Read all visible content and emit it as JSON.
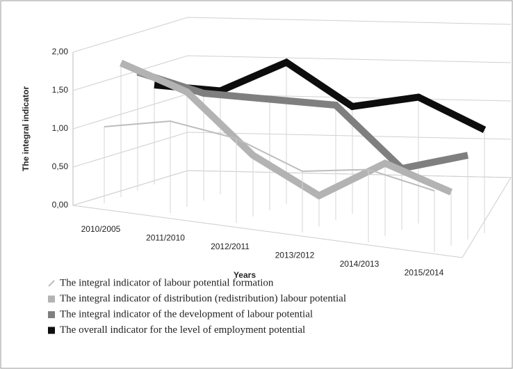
{
  "chart_data": {
    "type": "line3d",
    "y_axis_label": "The integral indicator",
    "x_axis_label": "Years",
    "categories": [
      "2010/2005",
      "2011/2010",
      "2012/2011",
      "2013/2012",
      "2014/2013",
      "2015/2014"
    ],
    "series": [
      {
        "name": "The integral indicator of labour potential formation",
        "color": "#bdbdbd",
        "values": [
          1.0,
          1.2,
          1.1,
          0.8,
          0.95,
          0.8
        ]
      },
      {
        "name": "The integral indicator of distribution (redistribution) labour potential",
        "color": "#b3b3b3",
        "values": [
          1.75,
          1.5,
          0.8,
          0.4,
          0.95,
          0.7
        ]
      },
      {
        "name": "The integral indicator of the development of labour potential",
        "color": "#7f7f7f",
        "values": [
          1.55,
          1.4,
          1.45,
          1.5,
          0.8,
          1.1
        ]
      },
      {
        "name": "The overall indicator for the level of employment potential",
        "color": "#0d0d0d",
        "values": [
          1.3,
          1.35,
          1.85,
          1.4,
          1.65,
          1.35
        ]
      }
    ],
    "ylim": [
      0,
      2
    ],
    "yticks": [
      {
        "value": 0,
        "label": "0,00"
      },
      {
        "value": 0.5,
        "label": "0,50"
      },
      {
        "value": 1,
        "label": "1,00"
      },
      {
        "value": 1.5,
        "label": "1,50"
      },
      {
        "value": 2,
        "label": "2,00"
      }
    ],
    "grid": true
  }
}
